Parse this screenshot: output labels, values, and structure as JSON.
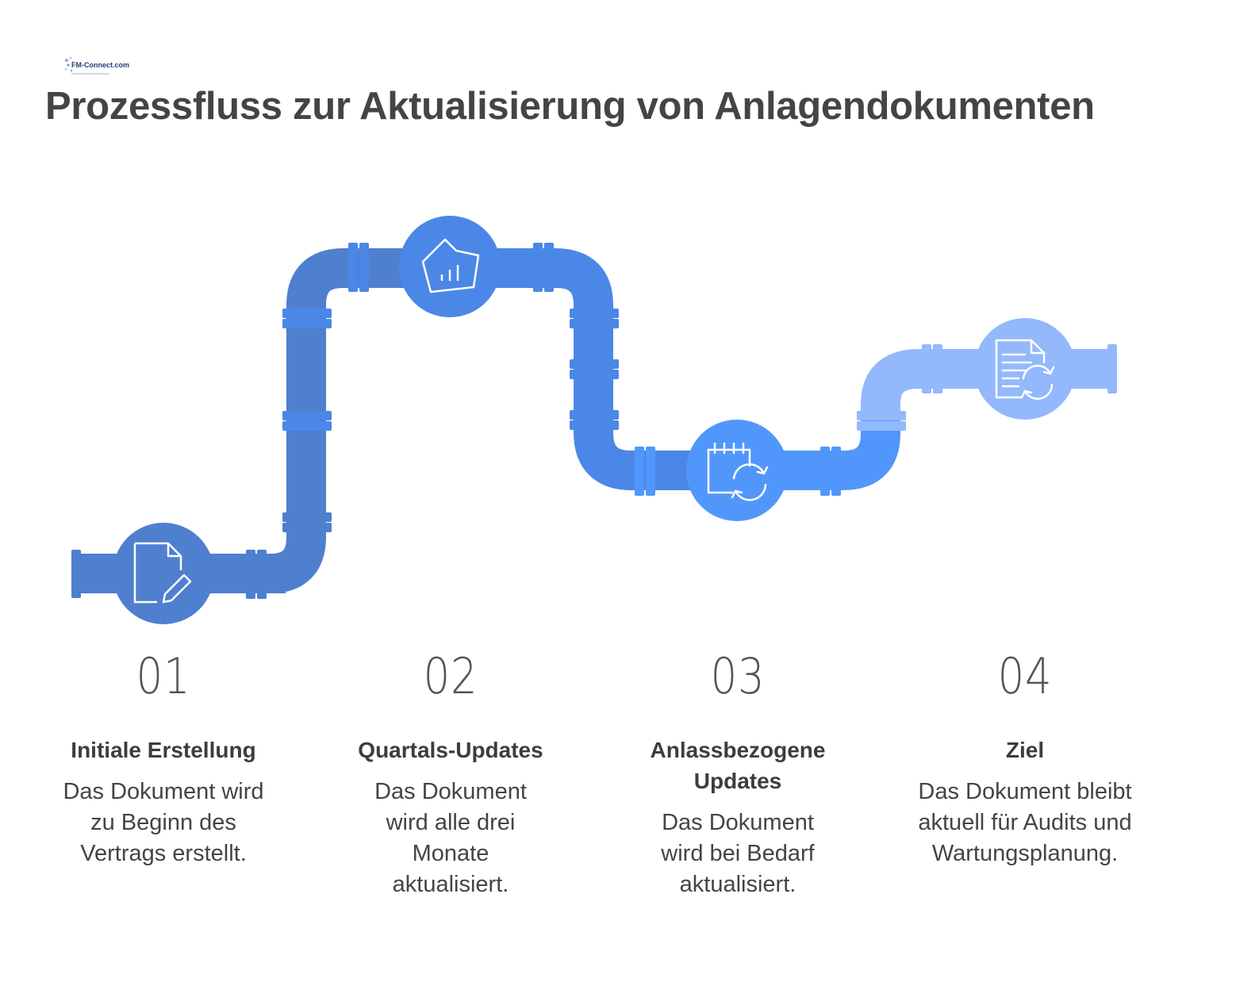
{
  "logo": {
    "text": "FM-Connect.com"
  },
  "title": "Prozessfluss zur Aktualisierung von Anlagendokumenten",
  "colors": {
    "pipe_dark": "#4f7fcf",
    "pipe_mid": "#4b87e6",
    "pipe_bright": "#5197fb",
    "pipe_light": "#93b8fb",
    "icon_stroke": "#ffffff",
    "text": "#444444"
  },
  "steps": [
    {
      "number": "01",
      "title": "Initiale Erstellung",
      "description": "Das Dokument wird zu Beginn des Vertrags erstellt.",
      "icon": "document-edit-icon"
    },
    {
      "number": "02",
      "title": "Quartals-Updates",
      "description": "Das Dokument wird alle drei Monate aktualisiert.",
      "icon": "chart-icon"
    },
    {
      "number": "03",
      "title": "Anlassbezogene Updates",
      "description": "Das Dokument wird bei Bedarf aktualisiert.",
      "icon": "calendar-refresh-icon"
    },
    {
      "number": "04",
      "title": "Ziel",
      "description": "Das Dokument bleibt aktuell für Audits und Wartungsplanung.",
      "icon": "document-refresh-icon"
    }
  ]
}
